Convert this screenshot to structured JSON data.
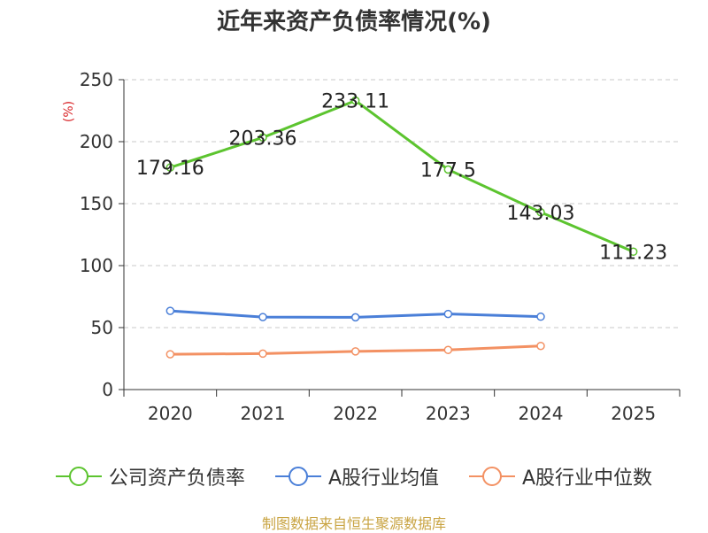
{
  "chart_data": {
    "type": "line",
    "title": "近年来资产负债率情况(%)",
    "ylabel": "(%)",
    "xlabel": "",
    "categories": [
      "2020",
      "2021",
      "2022",
      "2023",
      "2024",
      "2025"
    ],
    "ylim": [
      0,
      250
    ],
    "yticks": [
      0,
      50,
      100,
      150,
      200,
      250
    ],
    "grid": true,
    "legend_position": "bottom",
    "series": [
      {
        "name": "公司资产负债率",
        "color": "#5cc42f",
        "values": [
          179.16,
          203.36,
          233.11,
          177.5,
          143.03,
          111.23
        ],
        "labels": [
          "179.16",
          "203.36",
          "233.11",
          "177.5",
          "143.03",
          "111.23"
        ]
      },
      {
        "name": "A股行业均值",
        "color": "#4a7fd8",
        "values": [
          63.5,
          58.5,
          58.3,
          61.0,
          58.8,
          null
        ]
      },
      {
        "name": "A股行业中位数",
        "color": "#f39163",
        "values": [
          28.5,
          29.0,
          30.8,
          32.0,
          35.2,
          null
        ]
      }
    ]
  },
  "source": "制图数据来自恒生聚源数据库"
}
